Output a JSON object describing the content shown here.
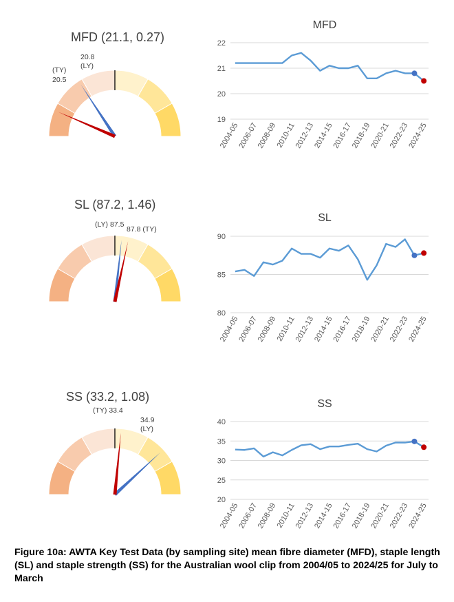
{
  "gauges": [
    {
      "id": "mfd",
      "title": "MFD (21.1, 0.27)",
      "ty_value": 20.5,
      "ly_value": 20.8,
      "mean": 21.1,
      "sd": 0.27,
      "ty_label_top": "(TY)",
      "ty_label_bottom": "20.5",
      "ly_label_top": "20.8",
      "ly_label_bottom": "(LY)"
    },
    {
      "id": "sl",
      "title": "SL (87.2, 1.46)",
      "ty_value": 87.8,
      "ly_value": 87.5,
      "mean": 87.2,
      "sd": 1.46,
      "ly_label": "(LY) 87.5",
      "ty_label": "87.8 (TY)"
    },
    {
      "id": "ss",
      "title": "SS (33.2, 1.08)",
      "ty_value": 33.4,
      "ly_value": 34.9,
      "mean": 33.2,
      "sd": 1.08,
      "ty_label": "(TY) 33.4",
      "ly_label_top": "34.9",
      "ly_label_bottom": "(LY)"
    }
  ],
  "chart_data": [
    {
      "type": "line",
      "title": "MFD",
      "categories": [
        "2004-05",
        "2005-06",
        "2006-07",
        "2007-08",
        "2008-09",
        "2009-10",
        "2010-11",
        "2011-12",
        "2012-13",
        "2013-14",
        "2014-15",
        "2015-16",
        "2016-17",
        "2017-18",
        "2018-19",
        "2019-20",
        "2020-21",
        "2021-22",
        "2022-23",
        "2023-24",
        "2024-25"
      ],
      "tick_labels": [
        "2004-05",
        "2006-07",
        "2008-09",
        "2010-11",
        "2012-13",
        "2014-15",
        "2016-17",
        "2018-19",
        "2020-21",
        "2022-23",
        "2024-25"
      ],
      "values": [
        21.2,
        21.2,
        21.2,
        21.2,
        21.2,
        21.2,
        21.5,
        21.6,
        21.3,
        20.9,
        21.1,
        21.0,
        21.0,
        21.1,
        20.6,
        20.6,
        20.8,
        20.9,
        20.8,
        20.8,
        20.5
      ],
      "ylim": [
        19,
        22
      ],
      "yticks": [
        19,
        20,
        21,
        22
      ],
      "ly_value": 20.8,
      "ty_value": 20.5
    },
    {
      "type": "line",
      "title": "SL",
      "categories": [
        "2004-05",
        "2005-06",
        "2006-07",
        "2007-08",
        "2008-09",
        "2009-10",
        "2010-11",
        "2011-12",
        "2012-13",
        "2013-14",
        "2014-15",
        "2015-16",
        "2016-17",
        "2017-18",
        "2018-19",
        "2019-20",
        "2020-21",
        "2021-22",
        "2022-23",
        "2023-24",
        "2024-25"
      ],
      "tick_labels": [
        "2004-05",
        "2006-07",
        "2008-09",
        "2010-11",
        "2012-13",
        "2014-15",
        "2016-17",
        "2018-19",
        "2020-21",
        "2022-23",
        "2024-25"
      ],
      "values": [
        85.4,
        85.6,
        84.8,
        86.6,
        86.3,
        86.8,
        88.4,
        87.7,
        87.7,
        87.2,
        88.4,
        88.1,
        88.8,
        87.0,
        84.3,
        86.2,
        89.0,
        88.6,
        89.6,
        87.5,
        87.8
      ],
      "ylim": [
        80,
        90
      ],
      "yticks": [
        80,
        85,
        90
      ],
      "ly_value": 87.5,
      "ty_value": 87.8
    },
    {
      "type": "line",
      "title": "SS",
      "categories": [
        "2004-05",
        "2005-06",
        "2006-07",
        "2007-08",
        "2008-09",
        "2009-10",
        "2010-11",
        "2011-12",
        "2012-13",
        "2013-14",
        "2014-15",
        "2015-16",
        "2016-17",
        "2017-18",
        "2018-19",
        "2019-20",
        "2020-21",
        "2021-22",
        "2022-23",
        "2023-24",
        "2024-25"
      ],
      "tick_labels": [
        "2004-05",
        "2006-07",
        "2008-09",
        "2010-11",
        "2012-13",
        "2014-15",
        "2016-17",
        "2018-19",
        "2020-21",
        "2022-23",
        "2024-25"
      ],
      "values": [
        32.8,
        32.7,
        33.1,
        31.0,
        32.1,
        31.3,
        32.7,
        33.9,
        34.2,
        32.9,
        33.6,
        33.6,
        34.0,
        34.3,
        32.9,
        32.3,
        33.8,
        34.6,
        34.6,
        34.9,
        33.4
      ],
      "ylim": [
        20,
        40
      ],
      "yticks": [
        20,
        25,
        30,
        35,
        40
      ],
      "ly_value": 34.9,
      "ty_value": 33.4
    }
  ],
  "colors": {
    "line": "#5b9bd5",
    "grid": "#d9d9d9",
    "ly_marker": "#4472c4",
    "ty_marker": "#c00000",
    "band1": "#f4b183",
    "band2": "#f8cbad",
    "band3": "#fbe5d6",
    "band4": "#fff2cc",
    "band5": "#ffe699",
    "band6": "#ffd966"
  },
  "caption": "Figure 10a: AWTA Key Test Data (by sampling site) mean fibre diameter (MFD), staple length (SL) and staple strength (SS) for the Australian wool clip from 2004/05 to 2024/25 for July to March"
}
